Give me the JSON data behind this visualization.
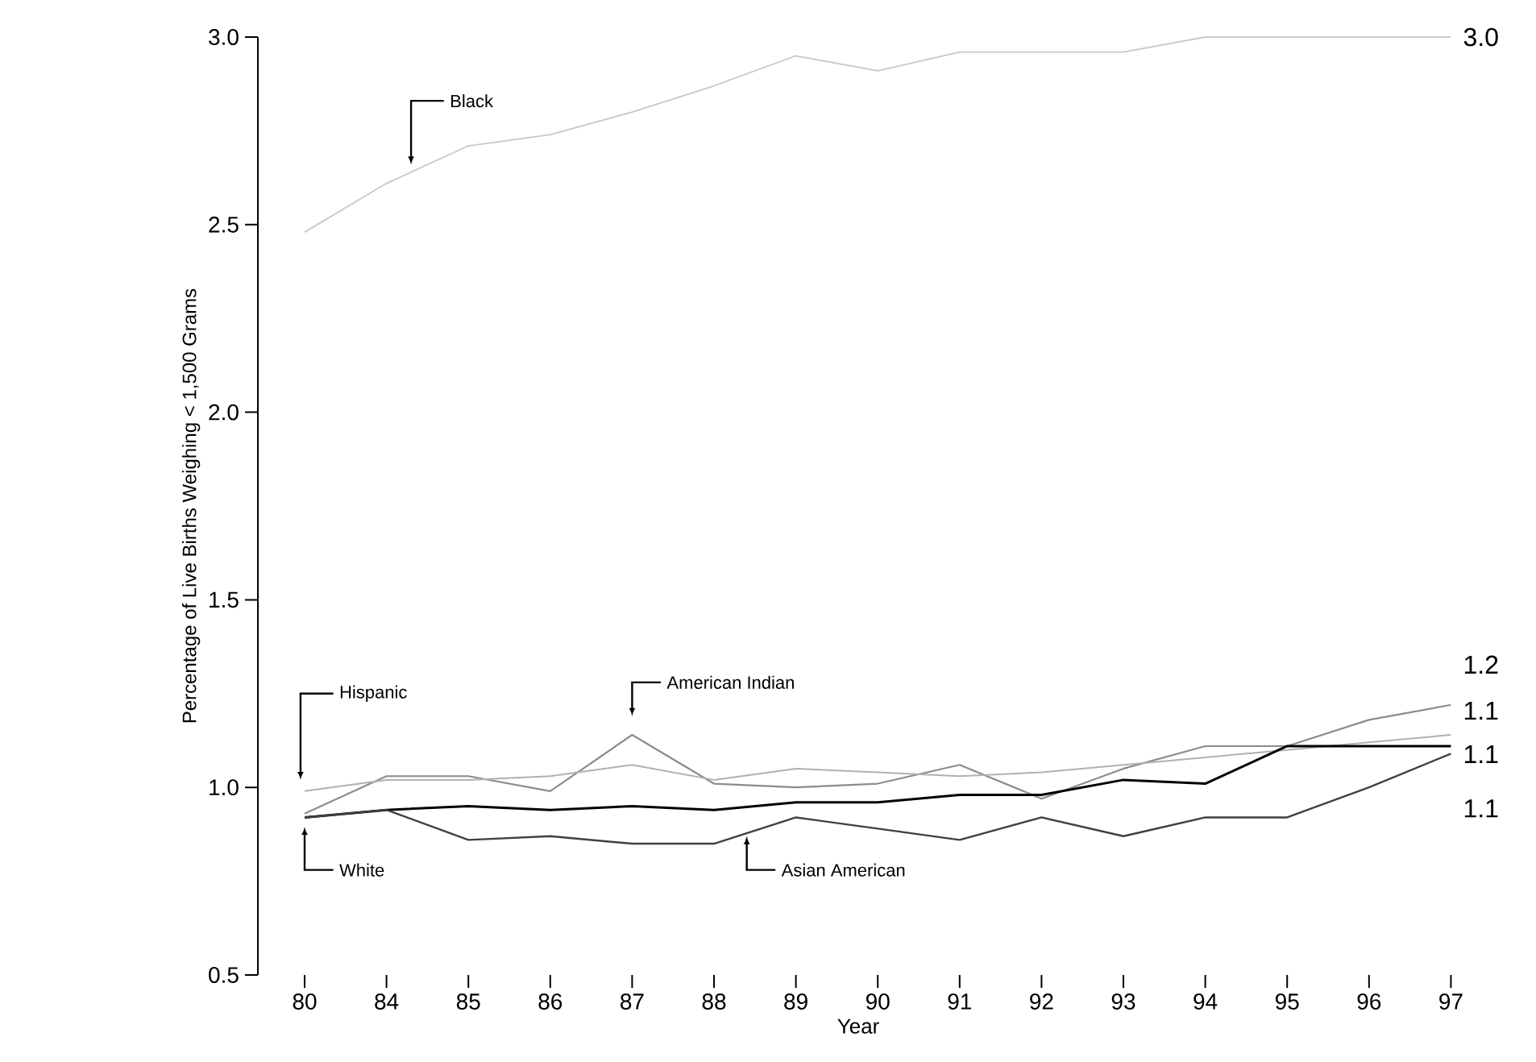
{
  "chart_data": {
    "type": "line",
    "xlabel": "Year",
    "ylabel": "Percentage of Live Births Weighing < 1,500 Grams",
    "categories": [
      "80",
      "84",
      "85",
      "86",
      "87",
      "88",
      "89",
      "90",
      "91",
      "92",
      "93",
      "94",
      "95",
      "96",
      "97"
    ],
    "ylim": [
      0.5,
      3.0
    ],
    "yticks": [
      0.5,
      {
        "value": 1,
        "label": "1.0"
      },
      1.5,
      {
        "value": 2,
        "label": "2.0"
      },
      2.5,
      {
        "value": 3,
        "label": "3.0"
      }
    ],
    "grid": false,
    "legend": false,
    "marker": "none",
    "line_style": "solid",
    "series": [
      {
        "name": "Black",
        "color": "#c8c8c8",
        "values": [
          2.48,
          2.61,
          2.71,
          2.74,
          2.8,
          2.87,
          2.95,
          2.91,
          2.96,
          2.96,
          2.96,
          3.0,
          3.0,
          3.0,
          3.0
        ],
        "value_labels": [
          null,
          null,
          null,
          null,
          null,
          null,
          null,
          null,
          null,
          null,
          null,
          null,
          null,
          null,
          "3.0"
        ]
      },
      {
        "name": "American Indian",
        "color": "#8c8c8c",
        "values": [
          0.93,
          1.03,
          1.03,
          0.99,
          1.14,
          1.01,
          1.0,
          1.01,
          1.06,
          0.97,
          1.05,
          1.11,
          1.11,
          1.18,
          1.22
        ],
        "value_labels": [
          null,
          null,
          null,
          null,
          null,
          null,
          null,
          null,
          null,
          null,
          null,
          null,
          null,
          null,
          "1.2"
        ]
      },
      {
        "name": "Hispanic",
        "color": "#b0b0b0",
        "values": [
          0.99,
          1.02,
          1.02,
          1.03,
          1.06,
          1.02,
          1.05,
          1.04,
          1.03,
          1.04,
          1.06,
          1.08,
          1.1,
          1.12,
          1.14
        ],
        "value_labels": [
          null,
          null,
          null,
          null,
          null,
          null,
          null,
          null,
          null,
          null,
          null,
          null,
          null,
          null,
          "1.1"
        ]
      },
      {
        "name": "White",
        "color": "#000000",
        "values": [
          0.92,
          0.94,
          0.95,
          0.94,
          0.95,
          0.94,
          0.96,
          0.96,
          0.98,
          0.98,
          1.02,
          1.01,
          1.11,
          1.11,
          1.11
        ],
        "value_labels": [
          null,
          null,
          null,
          null,
          null,
          null,
          null,
          null,
          null,
          null,
          null,
          null,
          null,
          null,
          "1.1"
        ]
      },
      {
        "name": "Asian American",
        "color": "#404040",
        "values": [
          0.92,
          0.94,
          0.86,
          0.87,
          0.85,
          0.85,
          0.92,
          0.89,
          0.86,
          0.92,
          0.87,
          0.92,
          0.92,
          1.0,
          1.09
        ],
        "value_labels": [
          null,
          null,
          null,
          null,
          null,
          null,
          null,
          null,
          null,
          null,
          null,
          null,
          null,
          null,
          "1.1"
        ]
      }
    ]
  }
}
